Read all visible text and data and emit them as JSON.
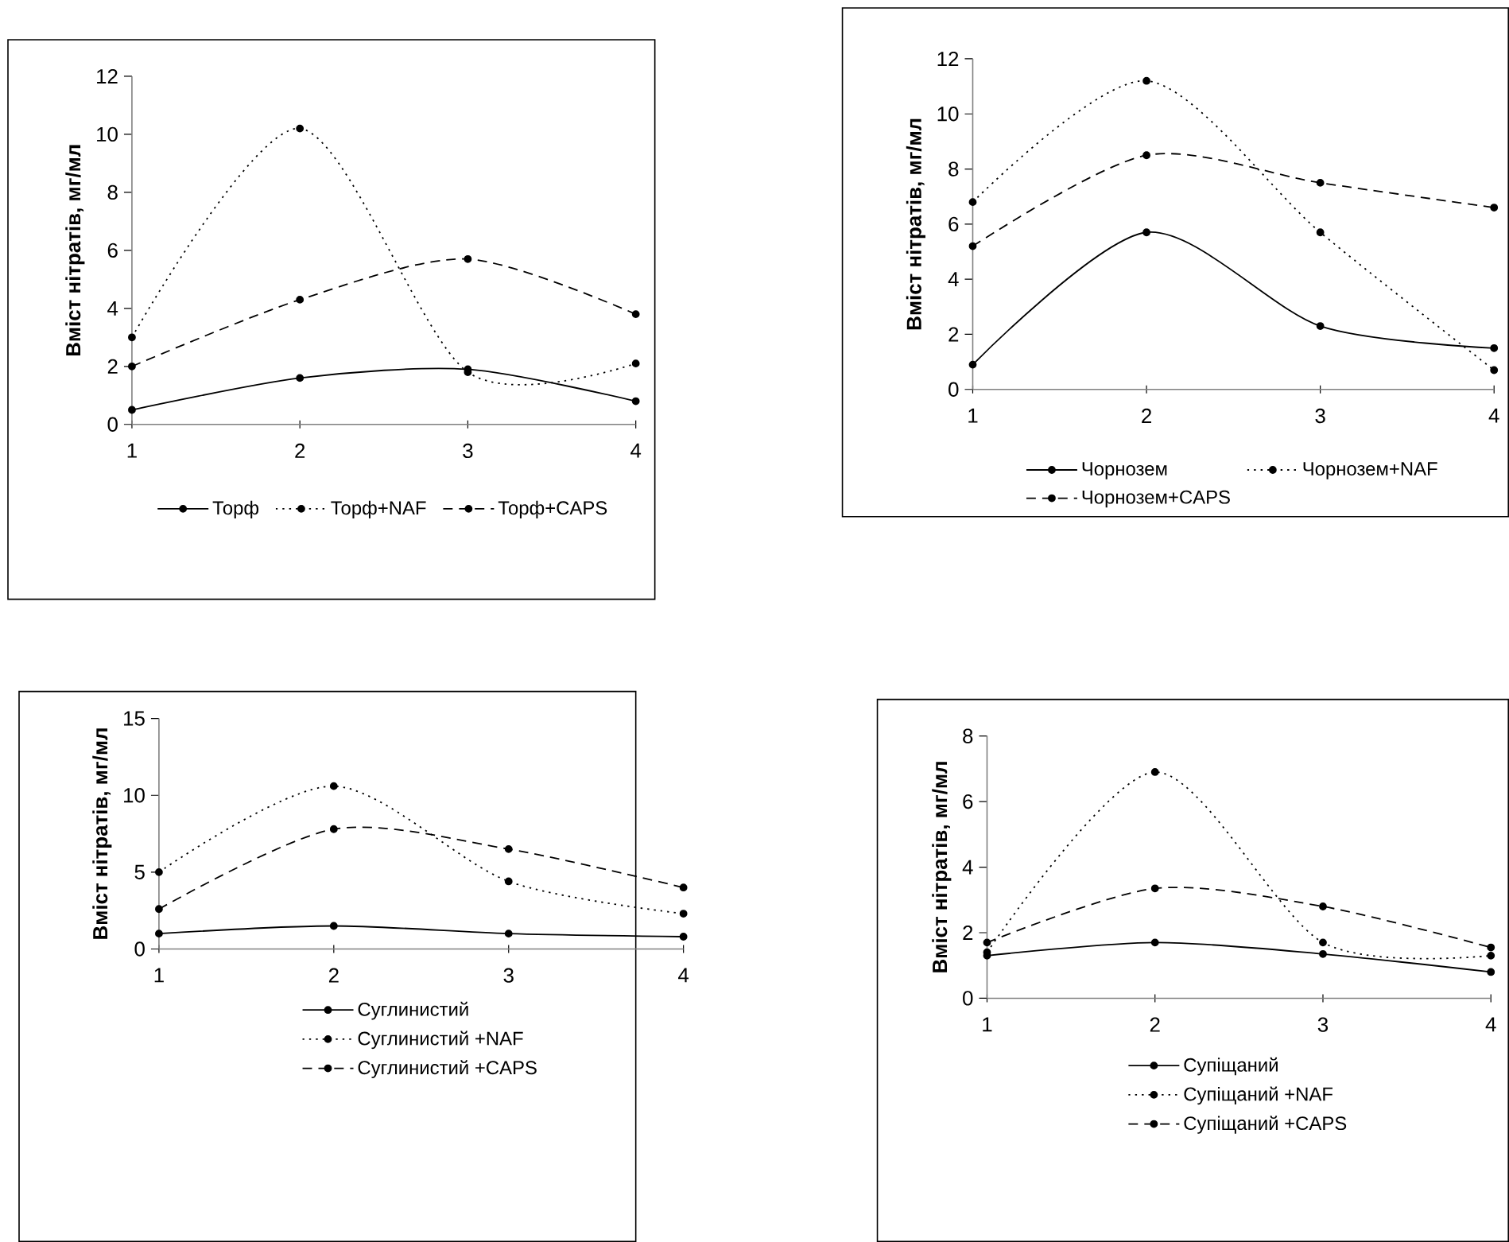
{
  "chart_data": [
    {
      "type": "line",
      "x": [
        1,
        2,
        3,
        4
      ],
      "xlim": [
        1,
        4
      ],
      "xticks": [
        1,
        2,
        3,
        4
      ],
      "ylim": [
        0,
        12
      ],
      "yticks": [
        0,
        2,
        4,
        6,
        8,
        10,
        12
      ],
      "ylabel": "Вміст нітратів, мг/мл",
      "marker": "circle",
      "legend": "bottom",
      "series": [
        {
          "name": "Торф",
          "color": "#000000",
          "line_style": "solid",
          "values": [
            0.5,
            1.6,
            1.9,
            0.8
          ]
        },
        {
          "name": "Торф+NAF",
          "color": "#000000",
          "line_style": "dotted",
          "values": [
            3.0,
            10.2,
            1.8,
            2.1
          ]
        },
        {
          "name": "Торф+CAPS",
          "color": "#000000",
          "line_style": "dashed",
          "values": [
            2.0,
            4.3,
            5.7,
            3.8
          ]
        }
      ]
    },
    {
      "type": "line",
      "x": [
        1,
        2,
        3,
        4
      ],
      "xlim": [
        1,
        4
      ],
      "xticks": [
        1,
        2,
        3,
        4
      ],
      "ylim": [
        0,
        12
      ],
      "yticks": [
        0,
        2,
        4,
        6,
        8,
        10,
        12
      ],
      "ylabel": "Вміст нітратів, мг/мл",
      "marker": "circle",
      "legend": "bottom",
      "series": [
        {
          "name": "Чорнозем",
          "color": "#000000",
          "line_style": "solid",
          "values": [
            0.9,
            5.7,
            2.3,
            1.5
          ]
        },
        {
          "name": "Чорнозем+NAF",
          "color": "#000000",
          "line_style": "dotted",
          "values": [
            6.8,
            11.2,
            5.7,
            0.7
          ]
        },
        {
          "name": "Чорнозем+CAPS",
          "color": "#000000",
          "line_style": "dashed",
          "values": [
            5.2,
            8.5,
            7.5,
            6.6
          ]
        }
      ]
    },
    {
      "type": "line",
      "x": [
        1,
        2,
        3,
        4
      ],
      "xlim": [
        1,
        4
      ],
      "xticks": [
        1,
        2,
        3,
        4
      ],
      "ylim": [
        0,
        15
      ],
      "yticks": [
        0,
        5,
        10,
        15
      ],
      "ylabel": "Вміст нітратів, мг/мл",
      "marker": "circle",
      "legend": "bottom",
      "series": [
        {
          "name": "Суглинистий",
          "color": "#000000",
          "line_style": "solid",
          "values": [
            1.0,
            1.5,
            1.0,
            0.8
          ]
        },
        {
          "name": "Суглинистий +NAF",
          "color": "#000000",
          "line_style": "dotted",
          "values": [
            5.0,
            10.6,
            4.4,
            2.3
          ]
        },
        {
          "name": "Суглинистий +CAPS",
          "color": "#000000",
          "line_style": "dashed",
          "values": [
            2.6,
            7.8,
            6.5,
            4.0
          ]
        }
      ]
    },
    {
      "type": "line",
      "x": [
        1,
        2,
        3,
        4
      ],
      "xlim": [
        1,
        4
      ],
      "xticks": [
        1,
        2,
        3,
        4
      ],
      "ylim": [
        0,
        8
      ],
      "yticks": [
        0,
        2,
        4,
        6,
        8
      ],
      "ylabel": "Вміст нітратів, мг/мл",
      "marker": "circle",
      "legend": "bottom",
      "series": [
        {
          "name": "Супіщаний",
          "color": "#000000",
          "line_style": "solid",
          "values": [
            1.3,
            1.7,
            1.35,
            0.8
          ]
        },
        {
          "name": "Супіщаний +NAF",
          "color": "#000000",
          "line_style": "dotted",
          "values": [
            1.4,
            6.9,
            1.7,
            1.3
          ]
        },
        {
          "name": "Супіщаний +CAPS",
          "color": "#000000",
          "line_style": "dashed",
          "values": [
            1.7,
            3.35,
            2.8,
            1.55
          ]
        }
      ]
    }
  ]
}
